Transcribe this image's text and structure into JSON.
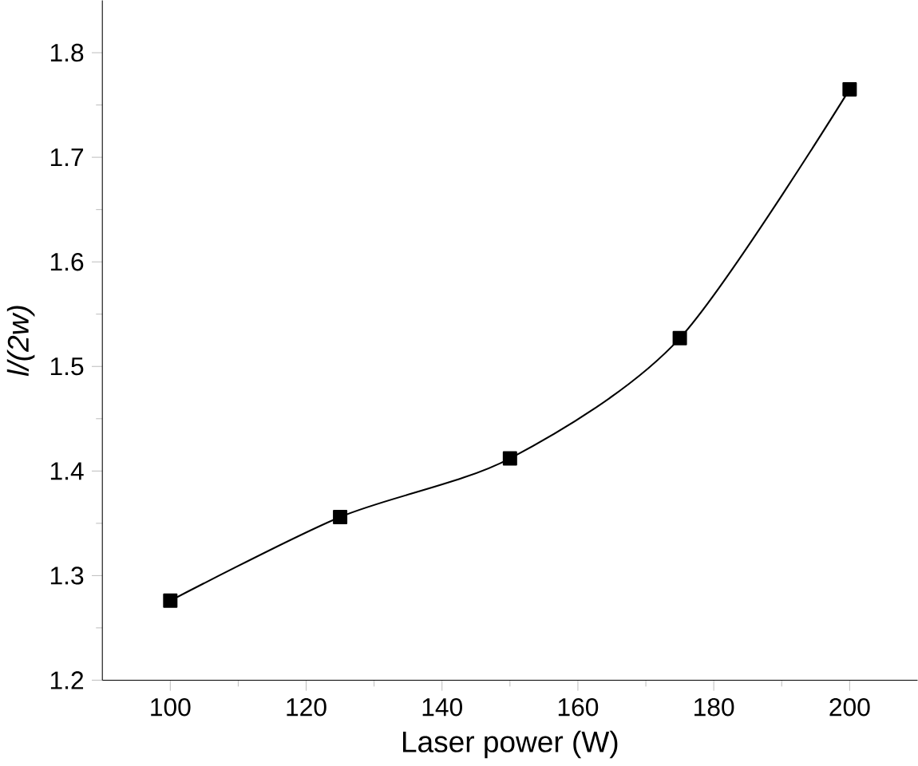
{
  "chart_data": {
    "type": "line",
    "xlabel": "Laser power (W)",
    "ylabel": "l/(2w)",
    "x": [
      100,
      125,
      150,
      175,
      200
    ],
    "series": [
      {
        "color": "#000000",
        "values": [
          1.276,
          1.356,
          1.412,
          1.527,
          1.765
        ]
      }
    ],
    "xlim": [
      90,
      210
    ],
    "ylim": [
      1.2,
      1.85
    ],
    "xticks": [
      100,
      120,
      140,
      160,
      180,
      200
    ],
    "yticks": [
      1.2,
      1.3,
      1.4,
      1.5,
      1.6,
      1.7,
      1.8
    ],
    "grid": false,
    "marker": "square",
    "line_style": "solid"
  }
}
